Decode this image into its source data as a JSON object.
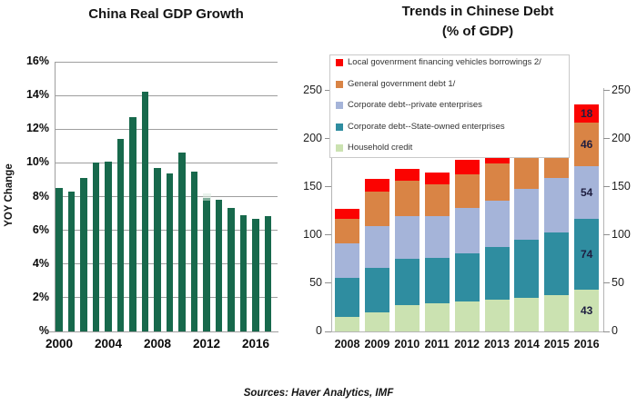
{
  "footer": {
    "sources": "Sources: Haver Analytics, IMF"
  },
  "colors": {
    "gdp_bar_green": "#17694C",
    "grid_gray": "#9e9e9e",
    "axis_gray": "#b5b5b5",
    "lgfv_red": "#FB0301",
    "gov_orange": "#D98445",
    "private_blue": "#A5B4D9",
    "soe_teal": "#2F8DA0",
    "household_green": "#CBE2B1"
  },
  "chart_data": [
    {
      "type": "bar",
      "title": "China Real GDP Growth",
      "ylabel": "YOY Change",
      "xlabel": "",
      "x": [
        "2000",
        "2001",
        "2002",
        "2003",
        "2004",
        "2005",
        "2006",
        "2007",
        "2008",
        "2009",
        "2010",
        "2011",
        "2012",
        "2013",
        "2014",
        "2015",
        "2016",
        "2017"
      ],
      "values": [
        8.5,
        8.3,
        9.1,
        10.0,
        10.1,
        11.4,
        12.7,
        14.2,
        9.7,
        9.4,
        10.6,
        9.5,
        7.9,
        7.8,
        7.3,
        6.9,
        6.7,
        6.85
      ],
      "ylim": [
        0,
        16
      ],
      "grid": true,
      "bar_color": "#17694C",
      "ytick_values": [
        0,
        2,
        4,
        6,
        8,
        10,
        12,
        14,
        16
      ],
      "ytick_labels": [
        "%",
        "2%",
        "4%",
        "6%",
        "8%",
        "10%",
        "12%",
        "14%",
        "16%"
      ],
      "xtick_indices": [
        0,
        4,
        8,
        12,
        16
      ],
      "xtick_labels": [
        "2000",
        "2004",
        "2008",
        "2012",
        "2016"
      ]
    },
    {
      "type": "bar",
      "stacked": true,
      "title": "Trends in Chinese Debt",
      "subtitle": "(% of GDP)",
      "categories": [
        "2008",
        "2009",
        "2010",
        "2011",
        "2012",
        "2013",
        "2014",
        "2015",
        "2016"
      ],
      "series": [
        {
          "name": "Household credit",
          "color": "#CBE2B1",
          "values": [
            15,
            20,
            27,
            29,
            31,
            33,
            35,
            38,
            43
          ]
        },
        {
          "name": "Corporate debt--State-owned enterprises",
          "color": "#2F8DA0",
          "values": [
            41,
            46,
            48,
            47,
            50,
            55,
            60,
            65,
            74
          ]
        },
        {
          "name": "Corporate debt--private enterprises",
          "color": "#A5B4D9",
          "values": [
            35,
            43,
            45,
            44,
            47,
            48,
            53,
            56,
            54
          ]
        },
        {
          "name": "General government debt 1/",
          "color": "#D98445",
          "values": [
            26,
            36,
            36,
            33,
            35,
            38,
            42,
            42,
            46
          ]
        },
        {
          "name": "Local govenrment financing vehicles borrowings 2/",
          "color": "#FB0301",
          "values": [
            10,
            13,
            13,
            12,
            15,
            16,
            16,
            17,
            18
          ]
        }
      ],
      "last_bar_value_labels": [
        43,
        74,
        54,
        46,
        18
      ],
      "ylim": [
        0,
        250
      ],
      "grid": false,
      "legend_position": "upper-left-inside",
      "legend_order_top_to_bottom": [
        "Local govenrment financing vehicles borrowings 2/",
        "General government debt 1/",
        "Corporate debt--private enterprises",
        "Corporate debt--State-owned enterprises",
        "Household credit"
      ],
      "ytick_values": [
        0,
        50,
        100,
        150,
        200,
        250
      ],
      "ytick_labels": [
        "0",
        "50",
        "100",
        "150",
        "200",
        "250"
      ]
    }
  ]
}
